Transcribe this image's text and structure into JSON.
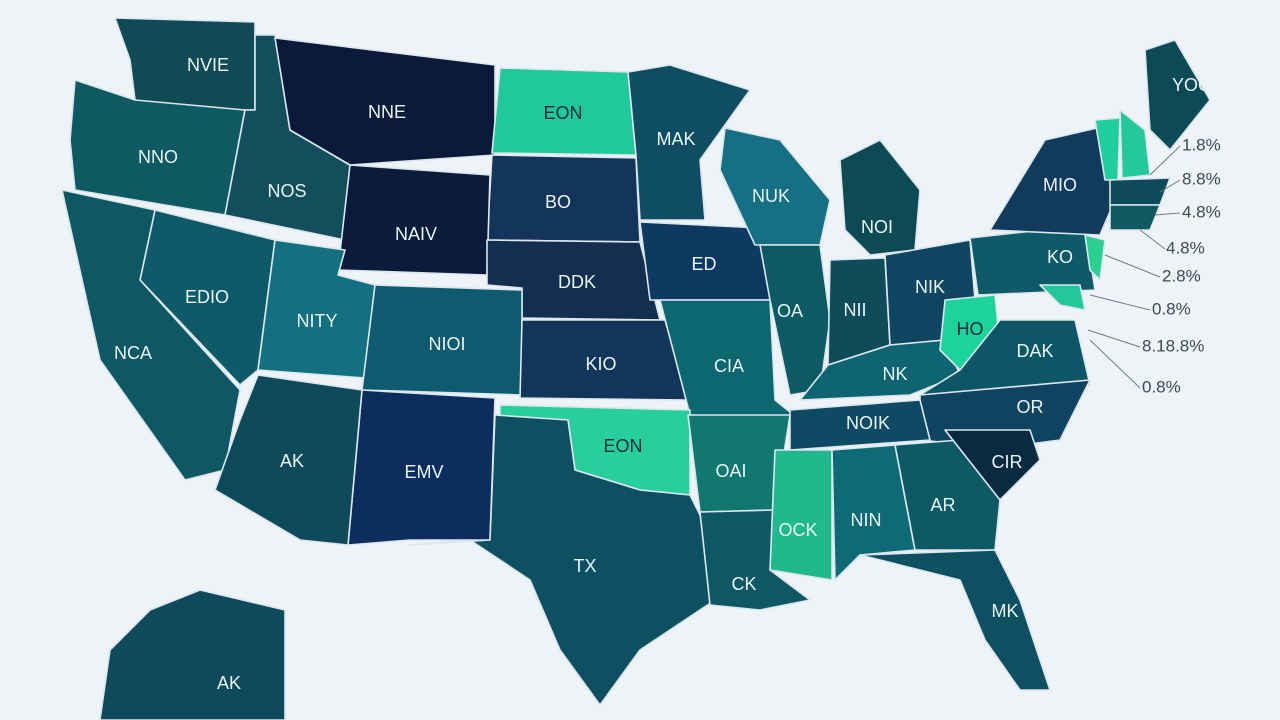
{
  "regions": [
    {
      "label": "NVIE"
    },
    {
      "label": "NNE"
    },
    {
      "label": "EON"
    },
    {
      "label": "NNO"
    },
    {
      "label": "MAK"
    },
    {
      "label": "NOS"
    },
    {
      "label": "BO"
    },
    {
      "label": "NAIV"
    },
    {
      "label": "NUK"
    },
    {
      "label": "NOI"
    },
    {
      "label": "MIO"
    },
    {
      "label": "YOG"
    },
    {
      "label": "ED"
    },
    {
      "label": "DDK"
    },
    {
      "label": "KO"
    },
    {
      "label": "EDIO"
    },
    {
      "label": "NITY"
    },
    {
      "label": "NIOI"
    },
    {
      "label": "OA"
    },
    {
      "label": "NII"
    },
    {
      "label": "NIK"
    },
    {
      "label": "NCA"
    },
    {
      "label": "KIO"
    },
    {
      "label": "CIA"
    },
    {
      "label": "HO"
    },
    {
      "label": "DAK"
    },
    {
      "label": "NK"
    },
    {
      "label": "OR"
    },
    {
      "label": "NOIK"
    },
    {
      "label": "AK"
    },
    {
      "label": "EMV"
    },
    {
      "label": "EON"
    },
    {
      "label": "OAI"
    },
    {
      "label": "CIR"
    },
    {
      "label": "AR"
    },
    {
      "label": "NIN"
    },
    {
      "label": "OCK"
    },
    {
      "label": "TX"
    },
    {
      "label": "CK"
    },
    {
      "label": "MK"
    },
    {
      "label": "AK"
    }
  ],
  "callouts": [
    "1.8%",
    "8.8%",
    "4.8%",
    "4.8%",
    "2.8%",
    "0.8%",
    "8.18.8%",
    "0.8%"
  ]
}
